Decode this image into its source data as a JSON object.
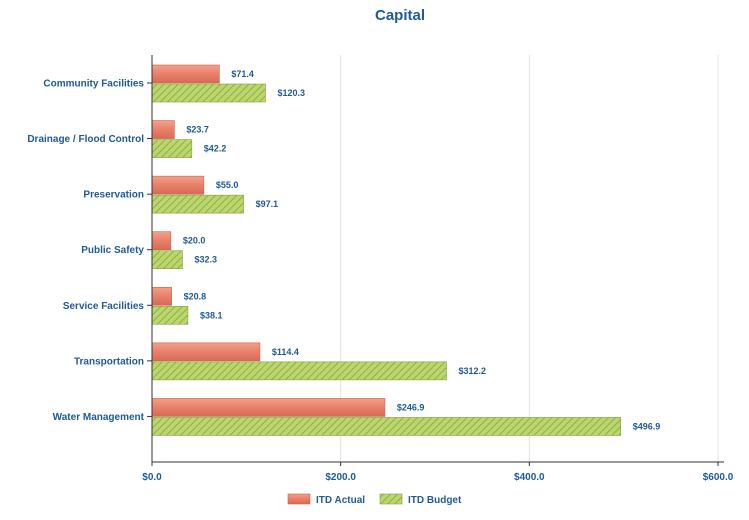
{
  "chart_data": {
    "type": "bar",
    "orientation": "horizontal",
    "title": "Capital",
    "categories": [
      "Community Facilities",
      "Drainage / Flood Control",
      "Preservation",
      "Public Safety",
      "Service Facilities",
      "Transportation",
      "Water Management"
    ],
    "series": [
      {
        "name": "ITD Actual",
        "color": "#e8806a",
        "values": [
          71.4,
          23.7,
          55.0,
          20.0,
          20.8,
          114.4,
          246.9
        ],
        "labels": [
          "$71.4",
          "$23.7",
          "$55.0",
          "$20.0",
          "$20.8",
          "$114.4",
          "$246.9"
        ]
      },
      {
        "name": "ITD Budget",
        "color": "#a6c45a",
        "values": [
          120.3,
          42.2,
          97.1,
          32.3,
          38.1,
          312.2,
          496.9
        ],
        "labels": [
          "$120.3",
          "$42.2",
          "$97.1",
          "$32.3",
          "$38.1",
          "$312.2",
          "$496.9"
        ]
      }
    ],
    "xlim": [
      0,
      600
    ],
    "xticks": [
      0,
      200,
      400,
      600
    ],
    "xtick_labels": [
      "$0.0",
      "$200.0",
      "$400.0",
      "$600.0"
    ],
    "grid": true,
    "legend_position": "bottom"
  }
}
